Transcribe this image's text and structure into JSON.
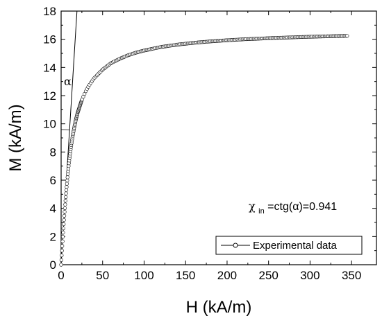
{
  "chart_data": {
    "type": "scatter",
    "title": "",
    "xlabel": "H (kA/m)",
    "ylabel": "M (kA/m)",
    "xlim": [
      0,
      380
    ],
    "ylim": [
      0,
      18
    ],
    "xticks": [
      "0",
      "50",
      "100",
      "150",
      "200",
      "250",
      "300",
      "350"
    ],
    "yticks": [
      "0",
      "2",
      "4",
      "6",
      "8",
      "10",
      "12",
      "14",
      "16",
      "18"
    ],
    "grid": false,
    "legend_position": "bottom-right",
    "series": [
      {
        "name": "Experimental data",
        "marker": "open-circle",
        "line": true,
        "x": [
          0,
          2,
          4,
          6,
          8,
          10,
          12,
          14,
          16,
          18,
          20,
          25,
          30,
          35,
          40,
          50,
          60,
          70,
          80,
          90,
          100,
          120,
          140,
          160,
          180,
          200,
          220,
          240,
          260,
          280,
          300,
          320,
          345
        ],
        "y": [
          0.0,
          1.9,
          3.6,
          5.1,
          6.4,
          7.5,
          8.4,
          9.15,
          9.8,
          10.35,
          10.8,
          11.7,
          12.35,
          12.85,
          13.25,
          13.85,
          14.3,
          14.6,
          14.85,
          15.05,
          15.2,
          15.45,
          15.62,
          15.75,
          15.85,
          15.93,
          16.0,
          16.05,
          16.1,
          16.14,
          16.18,
          16.21,
          16.24
        ]
      },
      {
        "name": "",
        "type": "line",
        "x": [
          0,
          19.1
        ],
        "y": [
          0,
          18
        ]
      }
    ],
    "annotations": [
      {
        "text": "α"
      },
      {
        "text": "χin=ctg(α)=0.941",
        "prefix": "χ",
        "subscript": "in",
        "suffix": "=ctg(α)=0.941"
      }
    ]
  },
  "colors": {
    "axis": "#000000",
    "data": "#000000",
    "background": "#ffffff"
  }
}
